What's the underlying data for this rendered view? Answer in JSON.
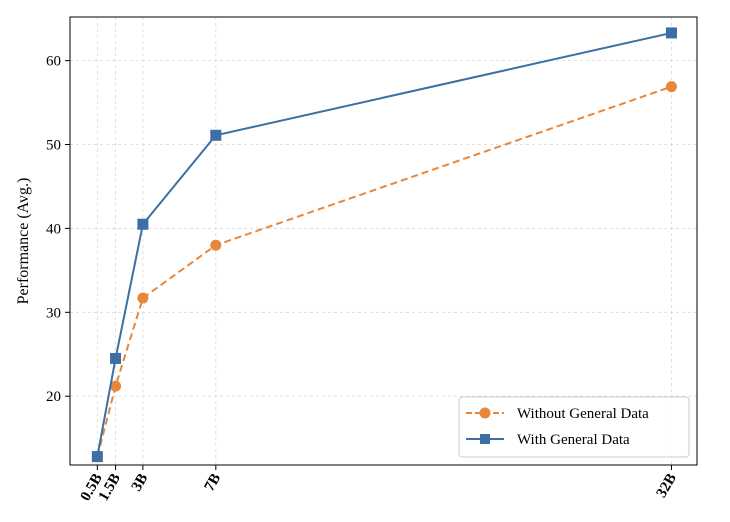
{
  "chart_data": {
    "type": "line",
    "x": [
      0.5,
      1.5,
      3,
      7,
      32
    ],
    "xticklabels": [
      "0.5B",
      "1.5B",
      "3B",
      "7B",
      "32B"
    ],
    "xlim": [
      -1,
      33.4
    ],
    "ylim": [
      11.8,
      65.2
    ],
    "yticks": [
      20,
      30,
      40,
      50,
      60
    ],
    "ylabel": "Performance (Avg.)",
    "xlabel": "",
    "title": "",
    "grid": true,
    "legend_position": "lower-right",
    "series": [
      {
        "name": "Without General Data",
        "values": [
          12.8,
          21.2,
          31.7,
          38.0,
          56.9
        ],
        "color": "#e8873a",
        "linestyle": "dashed",
        "marker": "circle"
      },
      {
        "name": "With General Data",
        "values": [
          12.8,
          24.5,
          40.5,
          51.1,
          63.3
        ],
        "color": "#3b6fa5",
        "linestyle": "solid",
        "marker": "square"
      }
    ]
  }
}
